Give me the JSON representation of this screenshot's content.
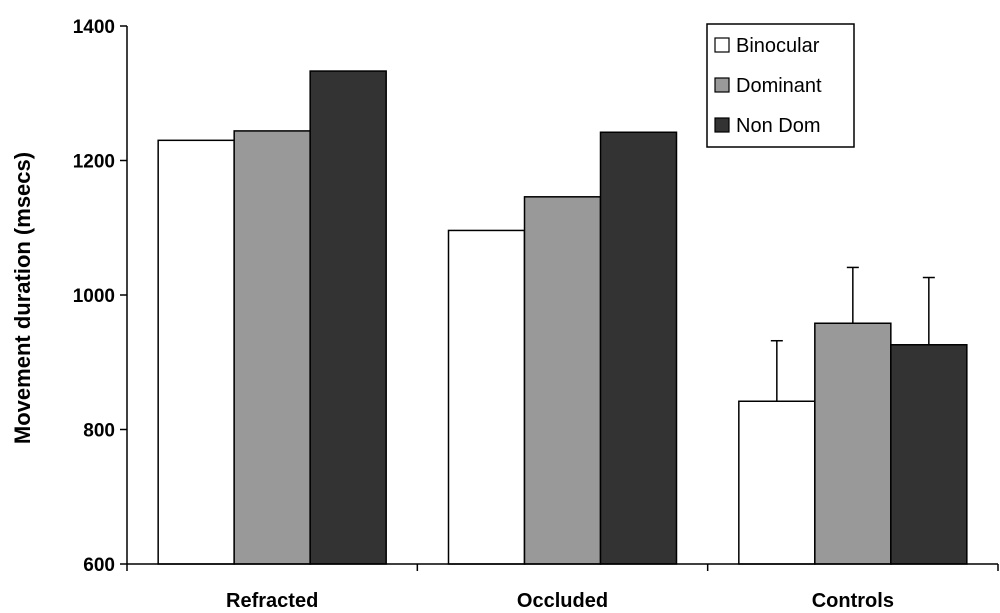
{
  "chart_data": {
    "type": "bar",
    "title": "",
    "xlabel": "",
    "ylabel": "Movement duration (msecs)",
    "ylim": [
      600,
      1400
    ],
    "yticks": [
      600,
      800,
      1000,
      1200,
      1400
    ],
    "grid": false,
    "legend_position": "top-right",
    "categories": [
      "Refracted",
      "Occluded",
      "Controls"
    ],
    "series": [
      {
        "name": "Binocular",
        "color": "#ffffff",
        "values": [
          1230,
          1096,
          842
        ],
        "error": [
          null,
          null,
          90
        ]
      },
      {
        "name": "Dominant",
        "color": "#999999",
        "values": [
          1244,
          1146,
          958
        ],
        "error": [
          null,
          null,
          83
        ]
      },
      {
        "name": "Non Dom",
        "color": "#333333",
        "values": [
          1333,
          1242,
          926
        ],
        "error": [
          null,
          null,
          100
        ]
      }
    ]
  }
}
